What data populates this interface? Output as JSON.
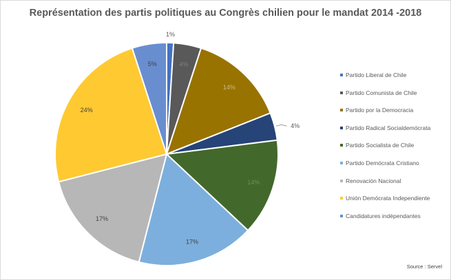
{
  "chart_data": {
    "type": "pie",
    "title": "Représentation des partis politiques au Congrès chilien pour le mandat 2014 -2018",
    "source": "Source :  Servel",
    "legend_position": "right",
    "slices": [
      {
        "label": "Partido Liberal de Chile",
        "value": 1,
        "value_label": "1%",
        "color": "#4472C4",
        "label_color": "#595959"
      },
      {
        "label": "Partido Comunista de Chile",
        "value": 4,
        "value_label": "4%",
        "color": "#595959",
        "label_color": "#7f7f7f"
      },
      {
        "label": "Partido por la Democracia",
        "value": 14,
        "value_label": "14%",
        "color": "#997300",
        "label_color": "#c9b98a"
      },
      {
        "label": "Partido Radical Socialdemócrata",
        "value": 4,
        "value_label": "4%",
        "color": "#264478",
        "label_color": "#595959"
      },
      {
        "label": "Partido Socialista de Chile",
        "value": 14,
        "value_label": "14%",
        "color": "#43682B",
        "label_color": "#6f8f5a"
      },
      {
        "label": "Partido Demócrata Cristiano",
        "value": 17,
        "value_label": "17%",
        "color": "#7CAFDD",
        "label_color": "#404040"
      },
      {
        "label": "Renovación Nacional",
        "value": 17,
        "value_label": "17%",
        "color": "#B7B7B7",
        "label_color": "#404040"
      },
      {
        "label": "Unión Demócrata Independiente",
        "value": 24,
        "value_label": "24%",
        "color": "#FFC931",
        "label_color": "#404040"
      },
      {
        "label": "Candidatures indépendantes",
        "value": 5,
        "value_label": "5%",
        "color": "#698ED0",
        "label_color": "#404040"
      }
    ]
  }
}
